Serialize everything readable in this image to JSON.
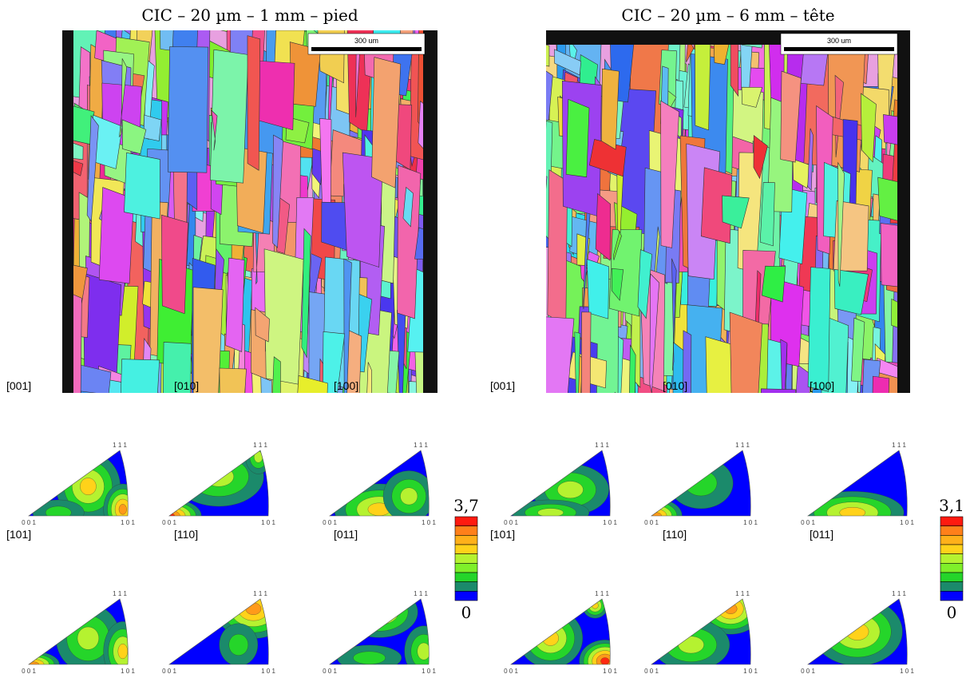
{
  "panels": [
    {
      "title": "CIC – 20 µm – 1 mm – pied",
      "scale_bar": "300 um",
      "ipfs": [
        {
          "label": "[001]"
        },
        {
          "label": "[010]"
        },
        {
          "label": "[100]"
        },
        {
          "label": "[101]"
        },
        {
          "label": "[110]"
        },
        {
          "label": "[011]"
        }
      ],
      "colorbar": {
        "max": "3,7",
        "min": "0"
      }
    },
    {
      "title": "CIC – 20 µm – 6 mm – tête",
      "scale_bar": "300 um",
      "ipfs": [
        {
          "label": "[001]"
        },
        {
          "label": "[010]"
        },
        {
          "label": "[100]"
        },
        {
          "label": "[101]"
        },
        {
          "label": "[110]"
        },
        {
          "label": "[011]"
        }
      ],
      "colorbar": {
        "max": "3,1",
        "min": "0"
      }
    }
  ],
  "ipf_corners": {
    "origin": "0 0 1",
    "right": "1 0 1",
    "top": "1 1 1"
  }
}
